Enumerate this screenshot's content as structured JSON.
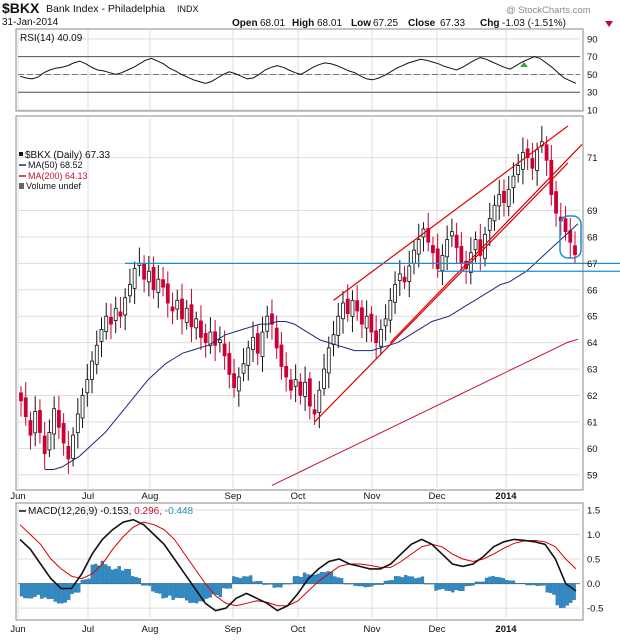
{
  "header": {
    "symbol": "$BKX",
    "name": "Bank Index - Philadelphia",
    "exchange": "INDX",
    "date": "31-Jan-2014",
    "watermark": "@ StockCharts.com",
    "open_label": "Open",
    "open": "68.01",
    "high_label": "High",
    "high": "68.01",
    "low_label": "Low",
    "low": "67.25",
    "close_label": "Close",
    "close": "67.33",
    "chg_label": "Chg",
    "chg": "-1.03 (-1.51%)"
  },
  "colors": {
    "up": "#111111",
    "down": "#cc0033",
    "ma50": "#1f2a7a",
    "ma200": "#c8102e",
    "channel": "#dd0000",
    "hline": "#1a8fd0",
    "macd_hist": "#2e8bc9",
    "grid": "#dddddd"
  },
  "chart_data": [
    {
      "panel": "rsi",
      "type": "line",
      "label": "RSI(14) 40.09",
      "ylim": [
        10,
        100
      ],
      "yticks": [
        90,
        70,
        50,
        30,
        10
      ],
      "reference_lines": [
        70,
        30
      ],
      "values": [
        48,
        46,
        45,
        47,
        52,
        55,
        57,
        58,
        60,
        63,
        65,
        62,
        58,
        55,
        54,
        52,
        50,
        52,
        55,
        58,
        62,
        66,
        68,
        65,
        62,
        57,
        54,
        50,
        47,
        44,
        42,
        40,
        42,
        46,
        50,
        53,
        51,
        48,
        45,
        46,
        50,
        55,
        58,
        60,
        58,
        55,
        52,
        50,
        54,
        58,
        61,
        63,
        62,
        60,
        57,
        54,
        52,
        48,
        45,
        44,
        46,
        49,
        53,
        57,
        60,
        63,
        65,
        67,
        66,
        64,
        62,
        59,
        57,
        55,
        58,
        62,
        66,
        69,
        67,
        64,
        61,
        58,
        56,
        60,
        64,
        67,
        70,
        68,
        63,
        58,
        52,
        46,
        43,
        40
      ]
    },
    {
      "panel": "price",
      "type": "candlestick",
      "legend": [
        "$BKX (Daily) 67.33",
        "MA(50) 68.52",
        "MA(200) 64.13",
        "Volume undef"
      ],
      "ylim": [
        58.5,
        72.5
      ],
      "yticks": [
        59,
        60,
        61,
        62,
        63,
        64,
        65,
        66,
        67,
        68,
        69,
        71
      ],
      "x_months": [
        "Jun",
        "Jul",
        "Aug",
        "Sep",
        "Oct",
        "Nov",
        "Dec",
        "2014"
      ],
      "closes": [
        61.8,
        61.2,
        60.5,
        61.4,
        60.6,
        59.8,
        60.6,
        61.5,
        60.8,
        60.2,
        59.6,
        60.5,
        61.3,
        62.0,
        62.6,
        63.3,
        63.9,
        64.5,
        65.0,
        64.7,
        65.3,
        65.0,
        65.7,
        66.2,
        66.8,
        67.0,
        66.4,
        66.7,
        66.0,
        66.4,
        66.1,
        65.5,
        65.2,
        65.6,
        64.9,
        65.3,
        64.6,
        64.9,
        64.2,
        64.0,
        64.4,
        63.9,
        64.1,
        63.5,
        62.8,
        62.3,
        62.7,
        63.2,
        63.8,
        64.2,
        63.6,
        64.4,
        65.0,
        64.7,
        63.8,
        63.1,
        62.7,
        62.2,
        62.6,
        62.0,
        62.5,
        61.6,
        61.3,
        62.2,
        63.0,
        63.8,
        64.3,
        65.0,
        65.5,
        65.1,
        65.6,
        65.2,
        64.7,
        65.0,
        64.4,
        64.0,
        64.5,
        64.9,
        65.6,
        66.2,
        66.6,
        66.3,
        66.9,
        67.5,
        67.9,
        68.3,
        67.8,
        67.4,
        66.8,
        67.3,
        67.9,
        68.2,
        67.6,
        67.0,
        66.8,
        67.4,
        67.9,
        67.3,
        68.1,
        68.7,
        69.2,
        69.6,
        69.3,
        69.8,
        70.3,
        70.7,
        71.2,
        71.0,
        70.6,
        71.3,
        71.6,
        70.9,
        69.6,
        68.9,
        68.6,
        68.2,
        67.8,
        67.33
      ],
      "ma50": [
        59.2,
        59.2,
        59.3,
        59.5,
        59.7,
        60.0,
        60.3,
        60.6,
        61.0,
        61.4,
        61.8,
        62.2,
        62.6,
        62.9,
        63.2,
        63.4,
        63.6,
        63.7,
        63.8,
        63.9,
        64.1,
        64.3,
        64.4,
        64.5,
        64.6,
        64.7,
        64.7,
        64.8,
        64.8,
        64.7,
        64.5,
        64.3,
        64.1,
        64.0,
        63.9,
        63.8,
        63.7,
        63.7,
        63.7,
        63.8,
        63.9,
        64.0,
        64.2,
        64.4,
        64.6,
        64.8,
        64.9,
        65.0,
        65.2,
        65.4,
        65.6,
        65.8,
        66.0,
        66.2,
        66.3,
        66.5,
        66.7,
        67.0,
        67.3,
        67.6,
        67.9,
        68.2,
        68.5
      ],
      "ma200": [
        58.6,
        58.8,
        59.0,
        59.2,
        59.4,
        59.6,
        59.8,
        60.0,
        60.2,
        60.4,
        60.6,
        60.8,
        61.0,
        61.2,
        61.4,
        61.6,
        61.8,
        62.0,
        62.2,
        62.4,
        62.6,
        62.8,
        63.0,
        63.2,
        63.4,
        63.6,
        63.8,
        64.0,
        64.13
      ],
      "annotations": {
        "channel_upper": [
          [
            65.6,
            72.2
          ]
        ],
        "channel_lower": [
          [
            61.0,
            70.8
          ]
        ],
        "channel_mid": [
          [
            64.0,
            71.5
          ]
        ],
        "horizontal_lines": [
          67.0,
          66.7
        ],
        "circled_region": "late January 2014"
      }
    },
    {
      "panel": "macd",
      "type": "macd",
      "label": "MACD(12,26,9) -0.153, 0.296, -0.448",
      "label_parts": [
        "MACD(12,26,9)",
        "-0.153,",
        "0.296,",
        "-0.448"
      ],
      "ylim": [
        -0.7,
        1.6
      ],
      "yticks": [
        1.5,
        1.0,
        0.5,
        0.0,
        -0.5
      ],
      "x_months": [
        "Jun",
        "Jul",
        "Aug",
        "Sep",
        "Oct",
        "Nov",
        "Dec",
        "2014"
      ],
      "macd": [
        0.9,
        0.7,
        0.4,
        0.1,
        -0.1,
        -0.1,
        0.2,
        0.6,
        0.9,
        1.1,
        1.25,
        1.3,
        1.2,
        1.0,
        0.8,
        0.5,
        0.2,
        -0.1,
        -0.4,
        -0.55,
        -0.5,
        -0.3,
        -0.2,
        -0.3,
        -0.4,
        -0.55,
        -0.45,
        -0.2,
        0.1,
        0.3,
        0.45,
        0.5,
        0.4,
        0.35,
        0.3,
        0.3,
        0.4,
        0.6,
        0.8,
        0.9,
        0.8,
        0.6,
        0.4,
        0.35,
        0.4,
        0.55,
        0.75,
        0.85,
        0.9,
        0.88,
        0.85,
        0.8,
        0.5,
        0.0,
        -0.15
      ],
      "signal": [
        1.2,
        1.0,
        0.8,
        0.5,
        0.3,
        0.15,
        0.1,
        0.2,
        0.4,
        0.7,
        0.95,
        1.15,
        1.25,
        1.2,
        1.1,
        0.9,
        0.6,
        0.3,
        0.0,
        -0.25,
        -0.4,
        -0.45,
        -0.4,
        -0.35,
        -0.38,
        -0.45,
        -0.45,
        -0.35,
        -0.15,
        0.05,
        0.2,
        0.35,
        0.4,
        0.4,
        0.37,
        0.33,
        0.33,
        0.45,
        0.6,
        0.75,
        0.8,
        0.75,
        0.6,
        0.5,
        0.45,
        0.5,
        0.6,
        0.72,
        0.82,
        0.87,
        0.88,
        0.85,
        0.75,
        0.5,
        0.3
      ],
      "histogram": [
        -0.3,
        -0.3,
        -0.4,
        -0.4,
        -0.4,
        -0.25,
        0.1,
        0.4,
        0.5,
        0.4,
        0.3,
        0.15,
        -0.05,
        -0.2,
        -0.3,
        -0.4,
        -0.4,
        -0.4,
        -0.4,
        -0.3,
        -0.1,
        0.15,
        0.2,
        0.05,
        -0.02,
        -0.1,
        0.0,
        0.15,
        0.25,
        0.25,
        0.25,
        0.15,
        0.0,
        -0.05,
        -0.07,
        -0.03,
        0.07,
        0.15,
        0.2,
        0.15,
        0.0,
        -0.15,
        -0.2,
        -0.15,
        -0.05,
        0.05,
        0.15,
        0.13,
        0.08,
        0.01,
        -0.03,
        -0.05,
        -0.25,
        -0.5,
        -0.45
      ]
    }
  ]
}
